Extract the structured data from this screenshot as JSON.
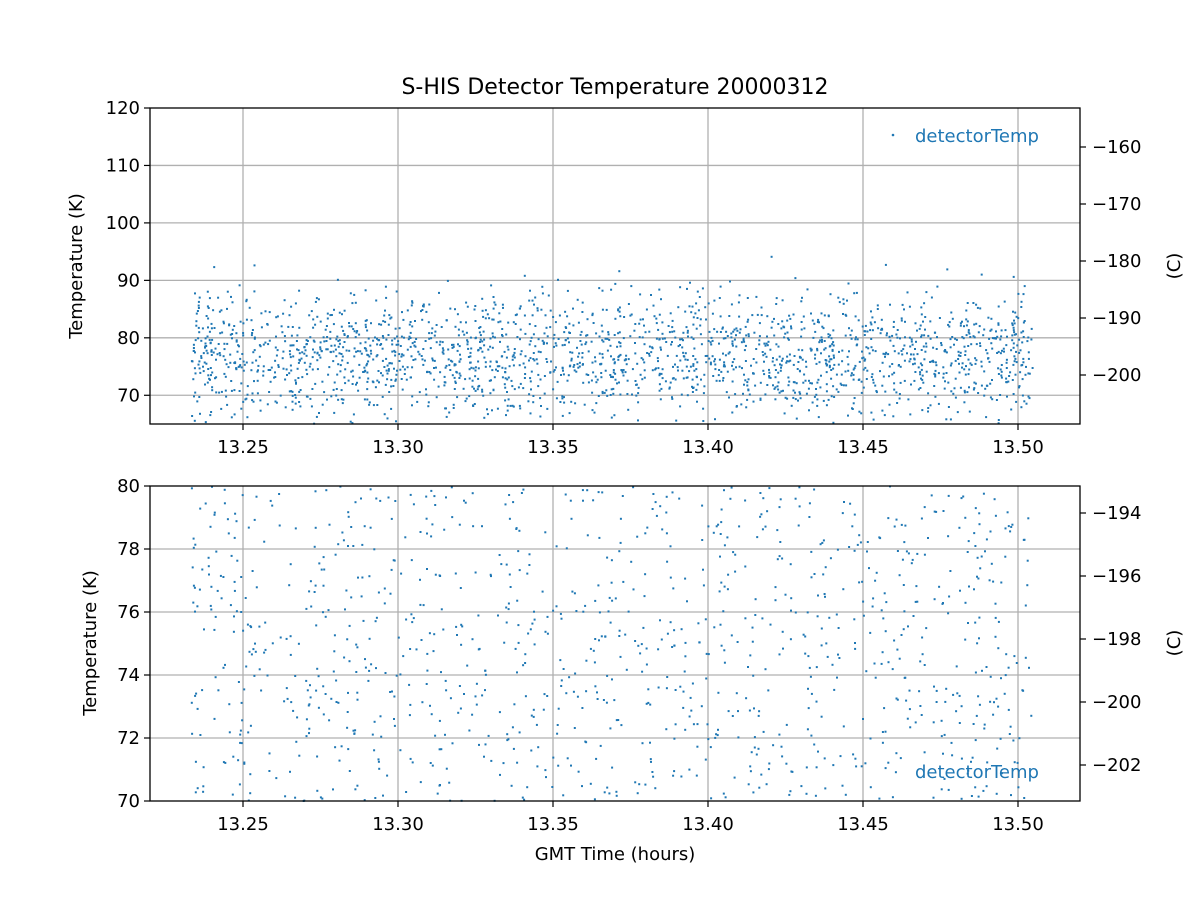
{
  "chart_data": {
    "title": "S-HIS Detector Temperature 20000312",
    "xlabel": "GMT Time (hours)",
    "series_color": "#1f77b4",
    "grid": true,
    "x_range": [
      13.2333,
      13.5047
    ],
    "x_ticks": [
      "13.25",
      "13.30",
      "13.35",
      "13.40",
      "13.45",
      "13.50"
    ],
    "panels": [
      {
        "type": "scatter",
        "ylabel": "Temperature (K)",
        "ylabel_right": "(C)",
        "xlim": [
          13.22,
          13.52
        ],
        "ylim": [
          65,
          120
        ],
        "y_ticks": [
          "70",
          "80",
          "90",
          "100",
          "110",
          "120"
        ],
        "y_right_ticks": [
          "−200",
          "−190",
          "−180",
          "−170",
          "−160"
        ],
        "legend": {
          "label": "detectorTemp",
          "loc": "upper right"
        },
        "series": [
          {
            "name": "detectorTemp",
            "sample_points": [
              [
                13.2407,
                92.3
              ],
              [
                13.2537,
                92.6
              ],
              [
                13.2806,
                90.1
              ],
              [
                13.3409,
                90.8
              ],
              [
                13.3714,
                91.6
              ],
              [
                13.4205,
                94.1
              ],
              [
                13.4282,
                90.4
              ],
              [
                13.4574,
                92.7
              ],
              [
                13.4772,
                91.9
              ],
              [
                13.4883,
                91.0
              ],
              [
                13.4986,
                90.6
              ],
              [
                13.3161,
                89.9
              ],
              [
                13.3516,
                90.1
              ],
              [
                13.4071,
                89.8
              ],
              [
                13.3308,
                87.1
              ],
              [
                13.2681,
                88.2
              ],
              [
                13.3843,
                88.4
              ],
              [
                13.4395,
                87.6
              ],
              [
                13.3942,
                89.6
              ],
              [
                13.2961,
                88.9
              ]
            ],
            "value_range": [
              65.5,
              94.1
            ],
            "point_count": 2200
          }
        ]
      },
      {
        "type": "scatter",
        "ylabel": "Temperature (K)",
        "ylabel_right": "(C)",
        "xlim": [
          13.22,
          13.52
        ],
        "ylim": [
          70,
          80
        ],
        "y_ticks": [
          "70",
          "72",
          "74",
          "76",
          "78",
          "80"
        ],
        "y_right_ticks": [
          "−202",
          "−200",
          "−198",
          "−196",
          "−194"
        ],
        "legend": {
          "label": "detectorTemp",
          "loc": "lower right"
        },
        "series": [
          {
            "name": "detectorTemp",
            "value_range": [
              70,
              80
            ],
            "point_count": 1100
          }
        ]
      }
    ]
  }
}
